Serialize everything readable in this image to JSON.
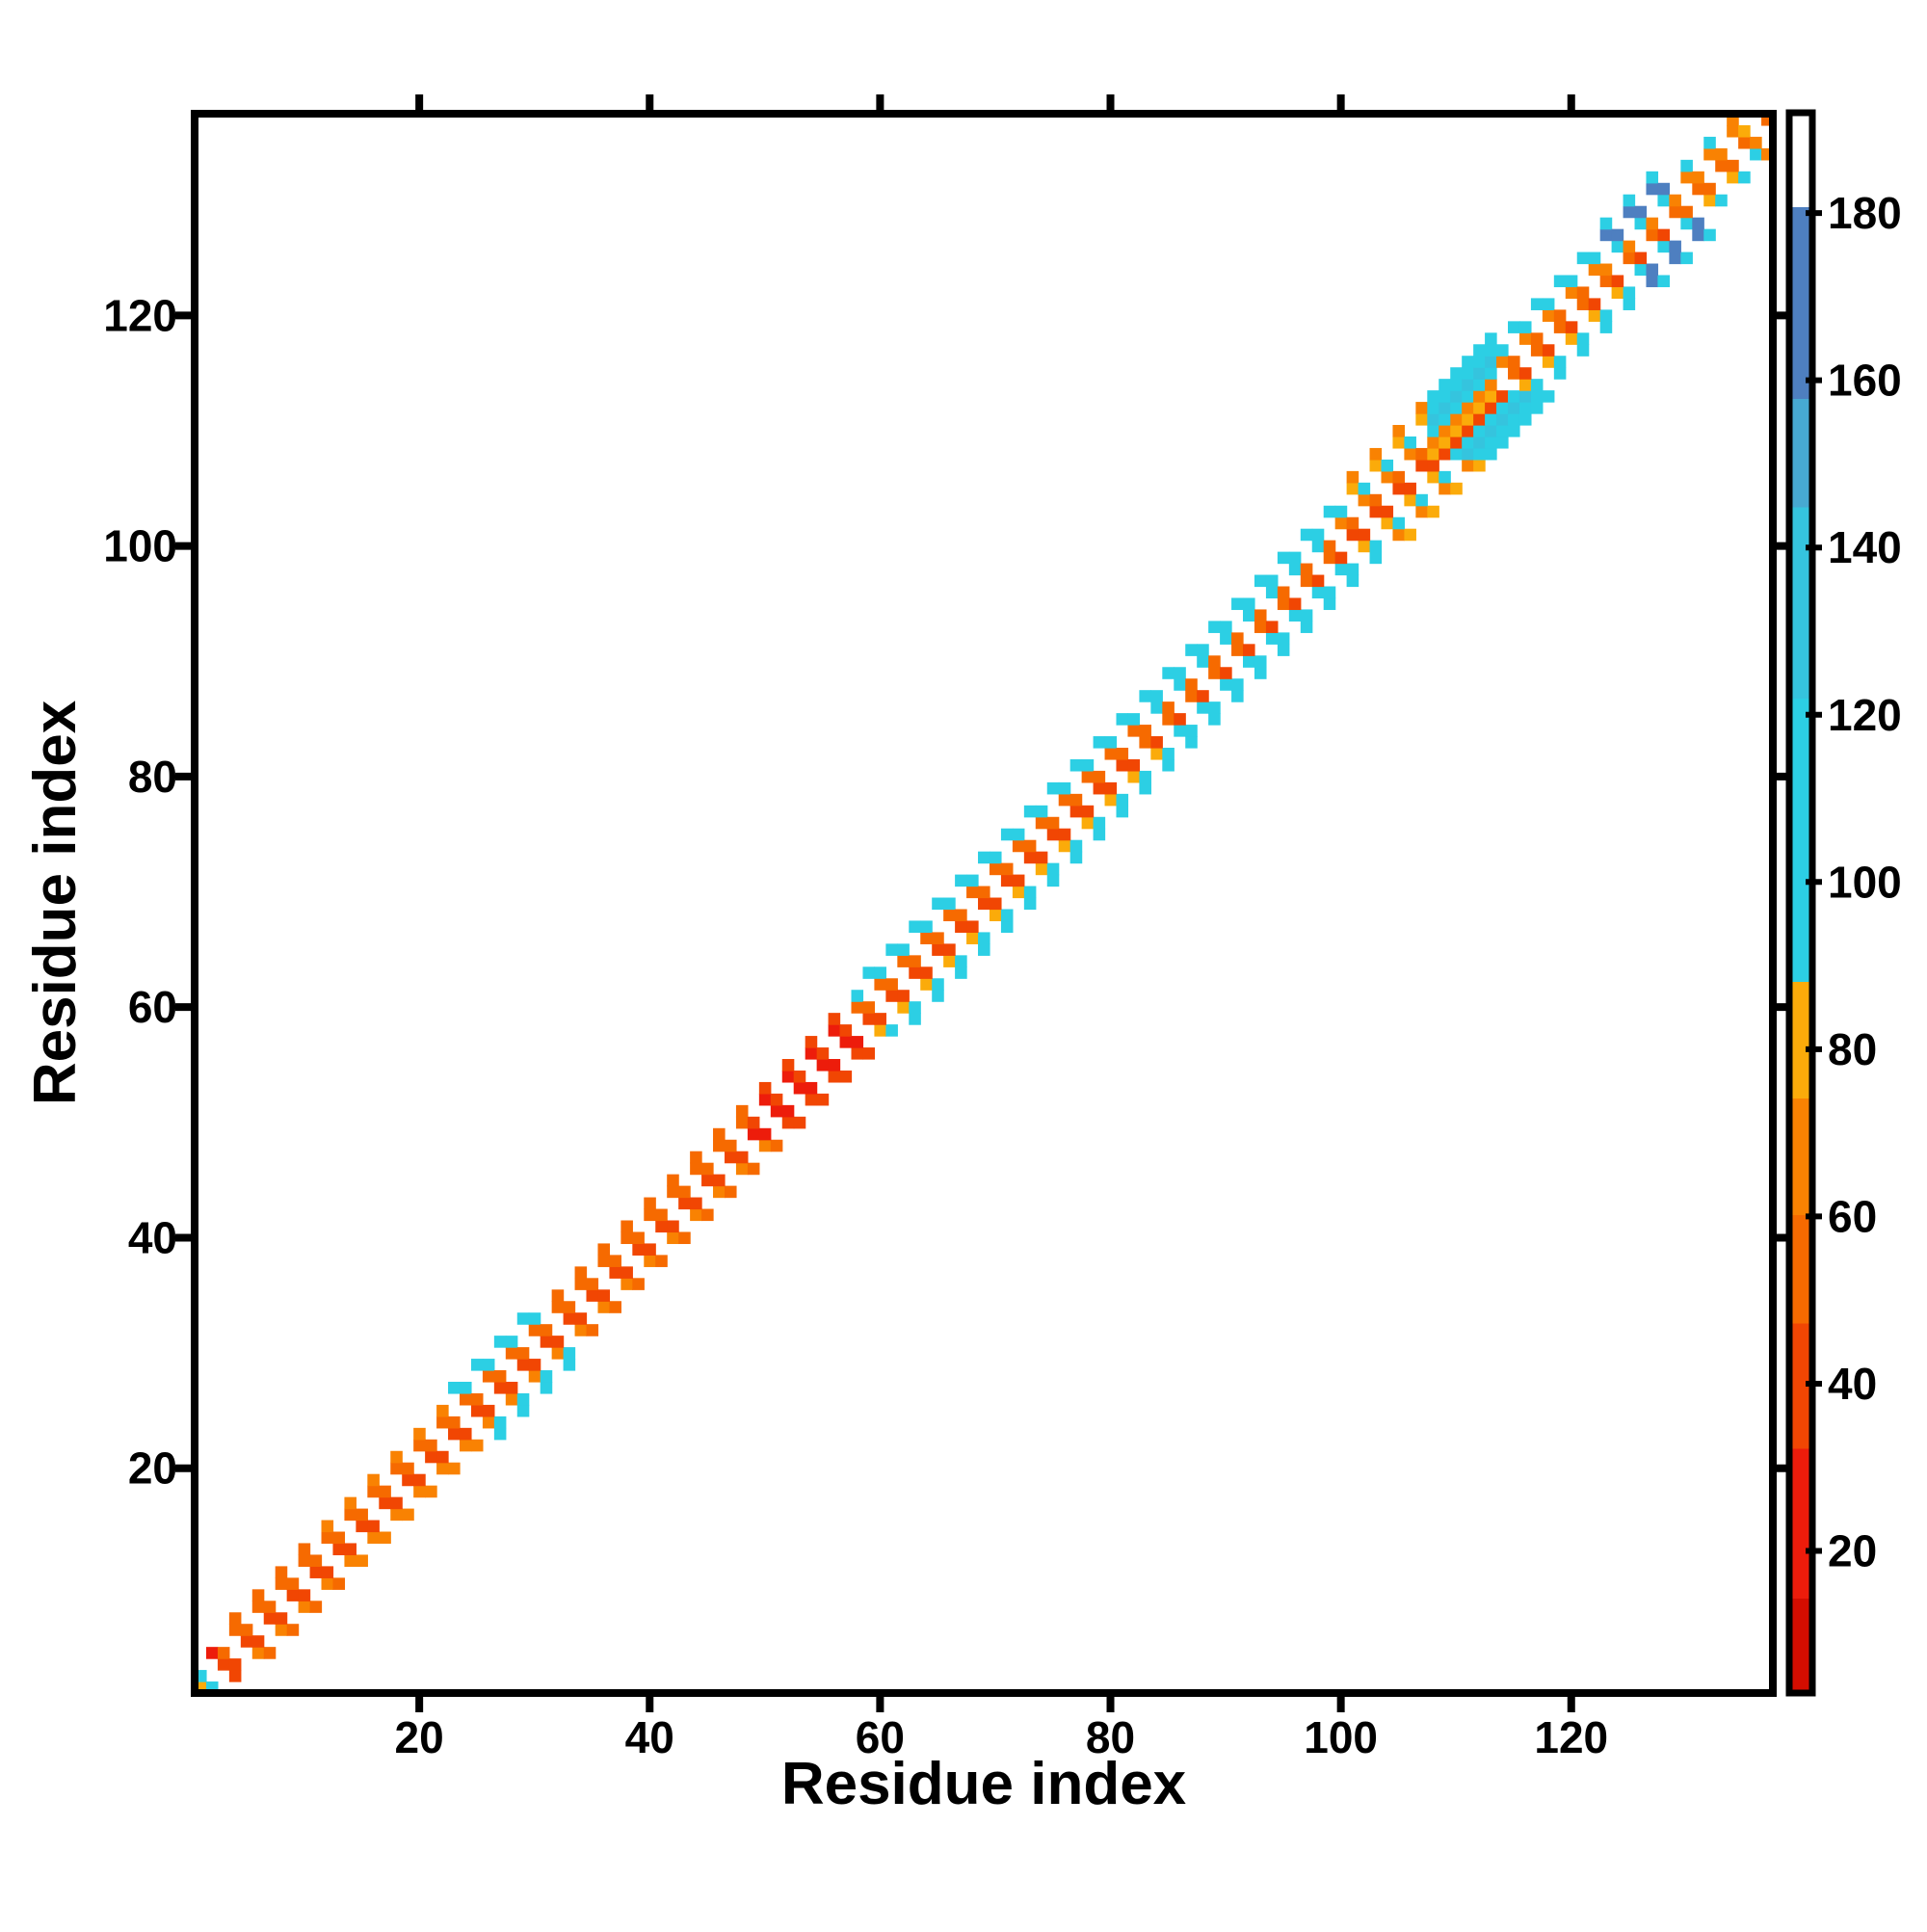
{
  "chart_data": {
    "type": "heatmap",
    "title": "",
    "xlabel": "Residue index",
    "ylabel": "Residue index",
    "n_residues": 137,
    "x_range": [
      1,
      137
    ],
    "y_range": [
      1,
      137
    ],
    "x_ticks": [
      20,
      40,
      60,
      80,
      100,
      120
    ],
    "y_ticks": [
      20,
      40,
      60,
      80,
      100,
      120
    ],
    "grid": false,
    "legend": "colorbar-right",
    "colorbar": {
      "vmin": 3,
      "vmax": 192,
      "ticks": [
        20,
        40,
        60,
        80,
        100,
        120,
        140,
        160,
        180
      ],
      "orientation": "vertical"
    },
    "colormap_stops": [
      {
        "upto": 14,
        "color": "#d40d00"
      },
      {
        "upto": 32,
        "color": "#ed1c0b"
      },
      {
        "upto": 47,
        "color": "#f14603"
      },
      {
        "upto": 60,
        "color": "#f66a00"
      },
      {
        "upto": 74,
        "color": "#f98202"
      },
      {
        "upto": 88,
        "color": "#fbab0a"
      },
      {
        "upto": 122,
        "color": "#2ccfe4"
      },
      {
        "upto": 145,
        "color": "#35c4de"
      },
      {
        "upto": 158,
        "color": "#47a9d2"
      },
      {
        "upto": 181,
        "color": "#4e7fc0"
      },
      {
        "upto": 999,
        "color": "#ffffff"
      }
    ],
    "symmetric": true,
    "presence_rule": "cell (i,j) drawn when (i+j) mod 4 >= 2 (checkerboard holes run perpendicular to the diagonal); segments flagged solid are fully filled; matrix mirrored across the diagonal",
    "jitter": {
      "note": "per-cell value variation estimated from the scattered red/orange/cyan mix",
      "inner_amp": 16,
      "outer_amp": 7,
      "hash": "(31*i+17*j) mod 9 -> ((h mod 3)-1)*amp"
    },
    "segments": [
      {
        "from": 1,
        "to": 2,
        "offset_values": [
          95,
          95,
          30,
          null,
          null,
          null
        ]
      },
      {
        "from": 3,
        "to": 10,
        "offset_values": [
          50,
          32,
          50,
          66,
          null,
          null
        ]
      },
      {
        "from": 11,
        "to": 22,
        "offset_values": [
          55,
          35,
          52,
          68,
          null,
          null
        ]
      },
      {
        "from": 23,
        "to": 30,
        "offset_values": [
          58,
          38,
          55,
          100,
          100,
          null
        ]
      },
      {
        "from": 31,
        "to": 48,
        "offset_values": [
          52,
          33,
          48,
          66,
          null,
          null
        ]
      },
      {
        "from": 49,
        "to": 57,
        "offset_values": [
          40,
          22,
          28,
          40,
          null,
          null
        ]
      },
      {
        "from": 58,
        "to": 82,
        "offset_values": [
          62,
          40,
          58,
          100,
          102,
          null
        ]
      },
      {
        "from": 83,
        "to": 99,
        "offset_values": [
          64,
          42,
          95,
          102,
          105,
          null
        ]
      },
      {
        "from": 100,
        "to": 107,
        "offset_values": [
          62,
          40,
          60,
          100,
          70,
          70
        ]
      },
      {
        "from": 108,
        "to": 113,
        "offset_values": [
          100,
          45,
          100,
          140,
          100,
          100
        ],
        "solid": true
      },
      {
        "from": 114,
        "to": 122,
        "offset_values": [
          68,
          38,
          62,
          95,
          100,
          null
        ]
      },
      {
        "from": 123,
        "to": 128,
        "offset_values": [
          68,
          45,
          95,
          165,
          168,
          100
        ]
      },
      {
        "from": 129,
        "to": 133,
        "offset_values": [
          70,
          50,
          70,
          95,
          null,
          null
        ]
      },
      {
        "from": 134,
        "to": 137,
        "offset_values": [
          75,
          62,
          72,
          75,
          null,
          null
        ]
      }
    ]
  }
}
